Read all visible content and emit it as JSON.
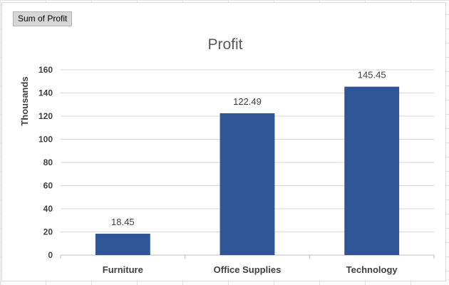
{
  "pivot_field_button": "Sum of Profit",
  "chart_data": {
    "type": "bar",
    "title": "Profit",
    "xlabel": "",
    "ylabel": "Thousands",
    "categories": [
      "Furniture",
      "Office Supplies",
      "Technology"
    ],
    "values": [
      18.45,
      122.49,
      145.45
    ],
    "data_labels": [
      "18.45",
      "122.49",
      "145.45"
    ],
    "ylim": [
      0,
      160
    ],
    "y_ticks": [
      "0",
      "20",
      "40",
      "60",
      "80",
      "100",
      "120",
      "140",
      "160"
    ],
    "grid": true,
    "legend": "none",
    "bar_color": "#2F5597"
  }
}
